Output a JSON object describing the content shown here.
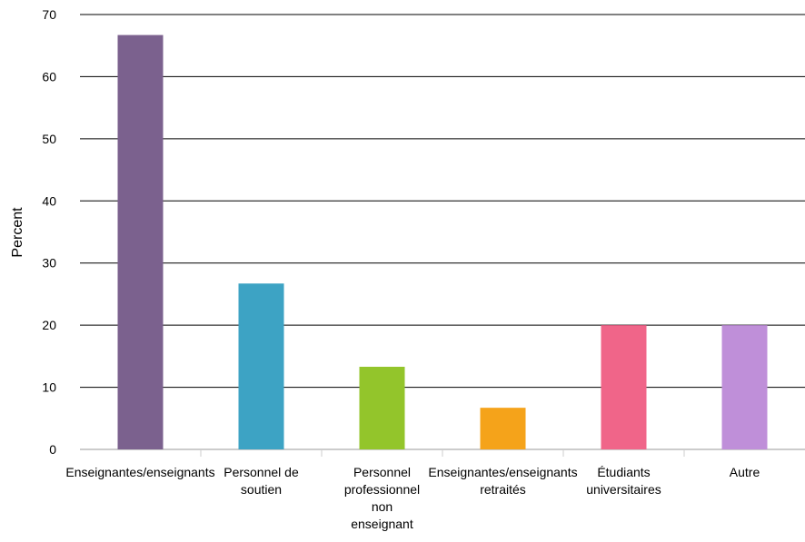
{
  "chart_data": {
    "type": "bar",
    "title": "",
    "xlabel": "",
    "ylabel": "Percent",
    "ylim": [
      0,
      70
    ],
    "yticks": [
      0,
      10,
      20,
      30,
      40,
      50,
      60,
      70
    ],
    "grid": true,
    "legend": "none",
    "categories": [
      [
        "Enseignantes/enseignants"
      ],
      [
        "Personnel de",
        "soutien"
      ],
      [
        "Personnel",
        "professionnel",
        "non",
        "enseignant"
      ],
      [
        "Enseignantes/enseignants",
        "retraités"
      ],
      [
        "Étudiants",
        "universitaires"
      ],
      [
        "Autre"
      ]
    ],
    "values": [
      66.7,
      26.7,
      13.3,
      6.7,
      20.0,
      20.0
    ],
    "colors": [
      "#7b618e",
      "#3da3c4",
      "#93c52b",
      "#f5a31a",
      "#f06589",
      "#bf8fd9"
    ]
  }
}
